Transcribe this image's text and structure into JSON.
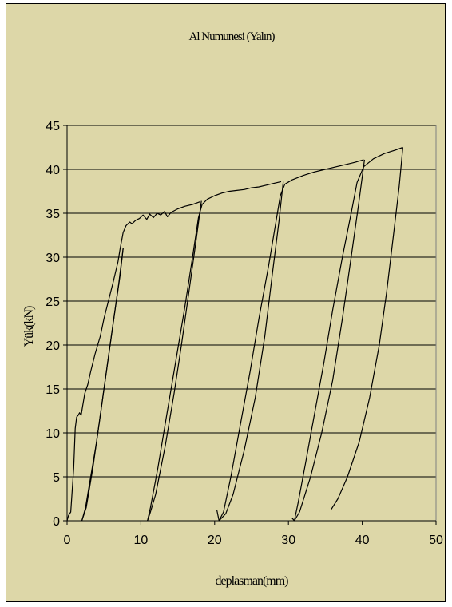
{
  "colors": {
    "background": "#ddd7a8",
    "line": "#000000",
    "grid": "#000000"
  },
  "chart_data": {
    "type": "line",
    "title": "Al Numunesi (Yalın)",
    "xlabel": "deplasman(mm)",
    "ylabel": "Yük(kN)",
    "xlim": [
      0,
      50
    ],
    "ylim": [
      0,
      45
    ],
    "x_ticks": [
      0,
      10,
      20,
      30,
      40,
      50
    ],
    "y_ticks": [
      0,
      5,
      10,
      15,
      20,
      25,
      30,
      35,
      40,
      45
    ],
    "grid": "horizontal",
    "legend": "none",
    "series": [
      {
        "points": [
          [
            0,
            0
          ],
          [
            0.2,
            0.6
          ],
          [
            0.5,
            1.0
          ],
          [
            0.9,
            6
          ],
          [
            1.1,
            10.5
          ],
          [
            1.3,
            11.8
          ],
          [
            1.5,
            12.0
          ],
          [
            1.7,
            12.3
          ],
          [
            1.9,
            12.0
          ],
          [
            2.1,
            13.0
          ],
          [
            2.4,
            14.5
          ],
          [
            2.8,
            15.5
          ],
          [
            3.2,
            17.0
          ],
          [
            3.8,
            19.0
          ],
          [
            4.5,
            21.0
          ],
          [
            5.0,
            23.0
          ],
          [
            5.6,
            25.0
          ],
          [
            6.2,
            27.0
          ],
          [
            6.9,
            29.5
          ],
          [
            7.2,
            31.0
          ],
          [
            7.6,
            32.8
          ],
          [
            8.0,
            33.6
          ],
          [
            8.5,
            34.0
          ],
          [
            8.8,
            33.8
          ],
          [
            9.3,
            34.2
          ],
          [
            9.8,
            34.4
          ],
          [
            10.3,
            34.8
          ],
          [
            10.8,
            34.3
          ],
          [
            11.2,
            34.9
          ],
          [
            11.7,
            34.5
          ],
          [
            12.2,
            35.0
          ],
          [
            12.7,
            34.8
          ],
          [
            13.2,
            35.2
          ],
          [
            13.6,
            34.6
          ],
          [
            14.1,
            35.1
          ],
          [
            15.0,
            35.5
          ],
          [
            16.0,
            35.8
          ],
          [
            17.0,
            36.0
          ],
          [
            18.0,
            36.3
          ]
        ]
      },
      {
        "points": [
          [
            7.6,
            31.0
          ],
          [
            7.0,
            27.0
          ],
          [
            6.0,
            21.0
          ],
          [
            5.0,
            15.0
          ],
          [
            4.0,
            9.0
          ],
          [
            3.0,
            4.0
          ],
          [
            2.5,
            1.5
          ],
          [
            2.0,
            0
          ]
        ]
      },
      {
        "points": [
          [
            2.0,
            0
          ],
          [
            2.6,
            1.5
          ],
          [
            3.5,
            6.0
          ],
          [
            4.5,
            12.0
          ],
          [
            5.5,
            18.0
          ],
          [
            6.5,
            24.0
          ],
          [
            7.2,
            28.0
          ],
          [
            7.6,
            31.0
          ]
        ]
      },
      {
        "points": [
          [
            18.2,
            36.4
          ],
          [
            17.5,
            32.0
          ],
          [
            16.5,
            26.0
          ],
          [
            15.5,
            20.0
          ],
          [
            14.5,
            14.5
          ],
          [
            13.3,
            8.5
          ],
          [
            12.0,
            3.0
          ],
          [
            11.3,
            1.0
          ],
          [
            10.9,
            0
          ]
        ]
      },
      {
        "points": [
          [
            10.9,
            0
          ],
          [
            11.3,
            1.5
          ],
          [
            12.3,
            6.0
          ],
          [
            13.5,
            12.0
          ],
          [
            14.7,
            18.0
          ],
          [
            15.9,
            24.0
          ],
          [
            17.0,
            30.0
          ],
          [
            17.8,
            34.5
          ],
          [
            18.3,
            36.0
          ],
          [
            19.0,
            36.6
          ],
          [
            20.0,
            37.0
          ],
          [
            21.0,
            37.3
          ],
          [
            22.0,
            37.5
          ],
          [
            23.0,
            37.6
          ],
          [
            24.0,
            37.7
          ],
          [
            25.0,
            37.9
          ],
          [
            26.0,
            38.0
          ],
          [
            27.0,
            38.2
          ],
          [
            28.0,
            38.4
          ],
          [
            29.0,
            38.6
          ]
        ]
      },
      {
        "points": [
          [
            29.3,
            38.6
          ],
          [
            28.7,
            34.0
          ],
          [
            27.8,
            28.0
          ],
          [
            26.8,
            21.0
          ],
          [
            25.5,
            14.0
          ],
          [
            24.0,
            8.0
          ],
          [
            22.5,
            3.0
          ],
          [
            21.5,
            0.8
          ],
          [
            20.6,
            0
          ]
        ]
      },
      {
        "points": [
          [
            20.3,
            1.2
          ],
          [
            20.6,
            0
          ],
          [
            21.2,
            1.0
          ],
          [
            22.2,
            5.0
          ],
          [
            23.5,
            11.0
          ],
          [
            24.8,
            17.0
          ],
          [
            26.0,
            23.0
          ],
          [
            27.3,
            29.0
          ],
          [
            28.3,
            34.0
          ],
          [
            28.9,
            37.0
          ],
          [
            29.5,
            38.3
          ],
          [
            30.5,
            38.8
          ],
          [
            32.0,
            39.3
          ],
          [
            33.5,
            39.7
          ],
          [
            35.0,
            40.0
          ],
          [
            36.5,
            40.3
          ],
          [
            38.0,
            40.6
          ],
          [
            39.0,
            40.8
          ],
          [
            40.2,
            41.1
          ]
        ]
      },
      {
        "points": [
          [
            40.3,
            41.1
          ],
          [
            39.5,
            36.0
          ],
          [
            38.5,
            30.0
          ],
          [
            37.3,
            23.0
          ],
          [
            36.0,
            16.0
          ],
          [
            34.5,
            10.0
          ],
          [
            33.0,
            5.0
          ],
          [
            31.5,
            1.0
          ],
          [
            30.8,
            0
          ]
        ]
      },
      {
        "points": [
          [
            30.5,
            0.3
          ],
          [
            30.8,
            0
          ],
          [
            31.3,
            2.0
          ],
          [
            32.3,
            6.5
          ],
          [
            33.5,
            12.0
          ],
          [
            34.8,
            18.0
          ],
          [
            36.0,
            24.0
          ],
          [
            37.3,
            30.0
          ],
          [
            38.5,
            35.0
          ],
          [
            39.3,
            38.5
          ],
          [
            40.2,
            40.3
          ],
          [
            41.5,
            41.2
          ],
          [
            43.0,
            41.8
          ],
          [
            44.5,
            42.2
          ],
          [
            45.5,
            42.5
          ]
        ]
      },
      {
        "points": [
          [
            45.5,
            42.5
          ],
          [
            45.0,
            38.0
          ],
          [
            44.3,
            33.0
          ],
          [
            43.3,
            26.0
          ],
          [
            42.3,
            20.0
          ],
          [
            41.0,
            14.0
          ],
          [
            39.6,
            9.0
          ],
          [
            38.0,
            5.0
          ],
          [
            36.7,
            2.5
          ],
          [
            35.8,
            1.3
          ]
        ]
      }
    ]
  }
}
